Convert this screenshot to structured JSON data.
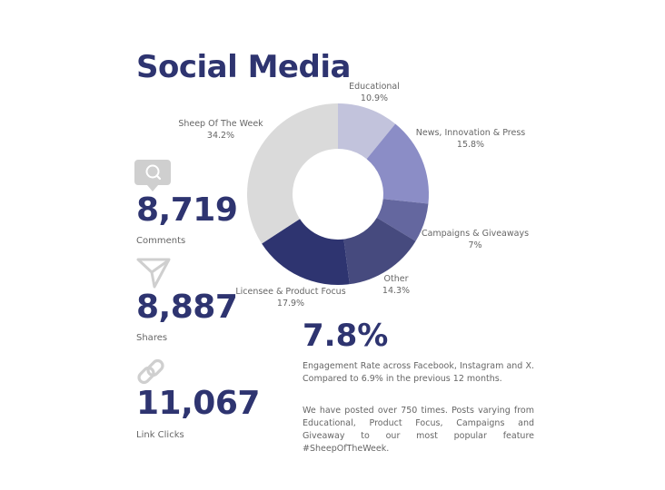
{
  "title": "Social Media",
  "stats": [
    {
      "value": "8,719",
      "label": "Comments",
      "icon": "comment-bubble-icon"
    },
    {
      "value": "8,887",
      "label": "Shares",
      "icon": "paper-plane-share-icon"
    },
    {
      "value": "11,067",
      "label": "Link Clicks",
      "icon": "link-chain-icon"
    }
  ],
  "engagement": {
    "rate": "7.8%",
    "description": "Engagement Rate across Facebook, Instagram and X. Compared to 6.9% in the previous 12 months.",
    "posts_text": "We have posted over 750 times. Posts varying from Educational, Product Focus, Campaigns and Giveaway to our most popular feature #SheepOfTheWeek."
  },
  "colors": {
    "title": "#2e3470",
    "educational": "#c2c3dc",
    "news": "#8b8dc6",
    "campaigns": "#64679f",
    "other": "#464a7e",
    "licensee": "#2e3470",
    "sheep": "#dadada",
    "icon": "#cfcfcf"
  },
  "chart_data": {
    "type": "pie",
    "donut": true,
    "categories": [
      "Educational",
      "News, Innovation & Press",
      "Campaigns & Giveaways",
      "Other",
      "Licensee & Product Focus",
      "Sheep Of The Week"
    ],
    "values": [
      10.9,
      15.8,
      7,
      14.3,
      17.9,
      34.2
    ],
    "value_labels": [
      "10.9%",
      "15.8%",
      "7%",
      "14.3%",
      "17.9%",
      "34.2%"
    ],
    "colors": [
      "#c2c3dc",
      "#8b8dc6",
      "#64679f",
      "#464a7e",
      "#2e3470",
      "#dadada"
    ]
  }
}
